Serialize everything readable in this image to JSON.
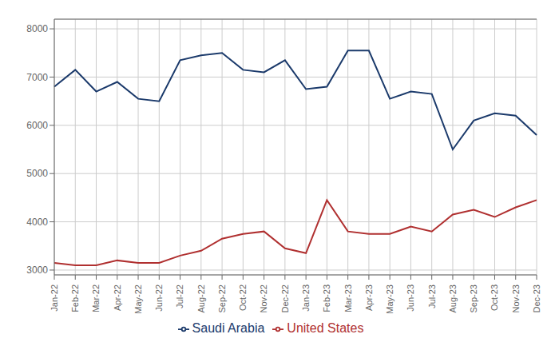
{
  "chart_data": {
    "type": "line",
    "categories": [
      "Jan-22",
      "Feb-22",
      "Mar-22",
      "Apr-22",
      "May-22",
      "Jun-22",
      "Jul-22",
      "Aug-22",
      "Sep-22",
      "Oct-22",
      "Nov-22",
      "Dec-22",
      "Jan-23",
      "Feb-23",
      "Mar-23",
      "Apr-23",
      "May-23",
      "Jun-23",
      "Jul-23",
      "Aug-23",
      "Sep-23",
      "Oct-23",
      "Nov-23",
      "Dec-23"
    ],
    "series": [
      {
        "name": "Saudi Arabia",
        "color": "#1b3a6b",
        "values": [
          6800,
          7150,
          6700,
          6900,
          6550,
          6500,
          7350,
          7450,
          7500,
          7150,
          7100,
          7350,
          6750,
          6800,
          7550,
          7550,
          6550,
          6700,
          6650,
          5500,
          6100,
          6250,
          6200,
          5800
        ]
      },
      {
        "name": "United States",
        "color": "#b03030",
        "values": [
          3150,
          3100,
          3100,
          3200,
          3150,
          3150,
          3300,
          3400,
          3650,
          3750,
          3800,
          3450,
          3350,
          4450,
          3800,
          3750,
          3750,
          3900,
          3800,
          4150,
          4250,
          4100,
          4300,
          4450
        ]
      }
    ],
    "ylim": [
      2900,
      8200
    ],
    "yticks": [
      3000,
      4000,
      5000,
      6000,
      7000,
      8000
    ],
    "grid": true,
    "legend": "bottom"
  }
}
